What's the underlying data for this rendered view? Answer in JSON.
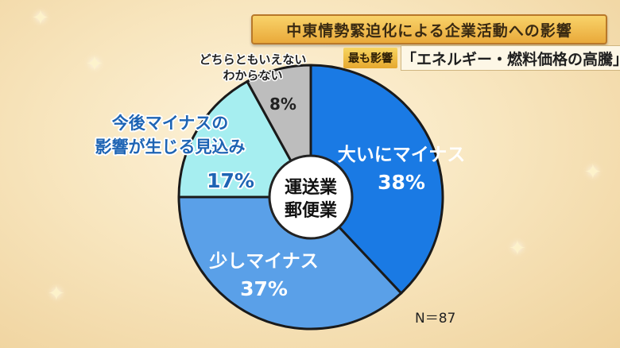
{
  "title": "中東情勢緊迫化による企業活動への影響",
  "subtitle": {
    "badge": "最も影響",
    "text": "「エネルギー・燃料価格の高騰」"
  },
  "center_label": {
    "line1": "運送業",
    "line2": "郵便業"
  },
  "sample_size": "N＝87",
  "chart_data": {
    "type": "pie",
    "slices": [
      {
        "label_lines": [
          "大いにマイナス"
        ],
        "value": 38,
        "value_text": "38%",
        "color": "#1a7ae4",
        "text_color": "#ffffff"
      },
      {
        "label_lines": [
          "少しマイナス"
        ],
        "value": 37,
        "value_text": "37%",
        "color": "#5aa0e8",
        "text_color": "#ffffff"
      },
      {
        "label_lines": [
          "今後マイナスの",
          "影響が生じる見込み"
        ],
        "value": 17,
        "value_text": "17%",
        "color": "#a6eef0",
        "text_color": "#1e64b4"
      },
      {
        "label_lines": [
          "どちらともいえない",
          "わからない"
        ],
        "value": 8,
        "value_text": "8%",
        "color": "#bdbdbd",
        "text_color": "#222222"
      }
    ]
  }
}
